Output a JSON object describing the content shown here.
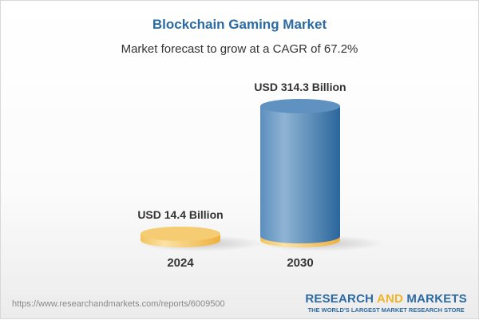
{
  "title": "Blockchain Gaming Market",
  "subtitle": "Market forecast to grow at a CAGR of 67.2%",
  "chart_data": {
    "type": "bar",
    "style": "3d-cylinder",
    "categories": [
      "2024",
      "2030"
    ],
    "values": [
      14.4,
      314.3
    ],
    "data_labels": [
      "USD 14.4 Billion",
      "USD 314.3 Billion"
    ],
    "unit": "USD Billion",
    "colors": {
      "2024": "#f5c76a",
      "2030": "#4f87b8",
      "base": "#f5c76a"
    },
    "grid": false
  },
  "footer": {
    "url": "https://www.researchandmarkets.com/reports/6009500",
    "logo_part1": "RESEARCH ",
    "logo_part2": "AND",
    "logo_part3": " MARKETS",
    "tagline": "THE WORLD'S LARGEST MARKET RESEARCH STORE"
  }
}
